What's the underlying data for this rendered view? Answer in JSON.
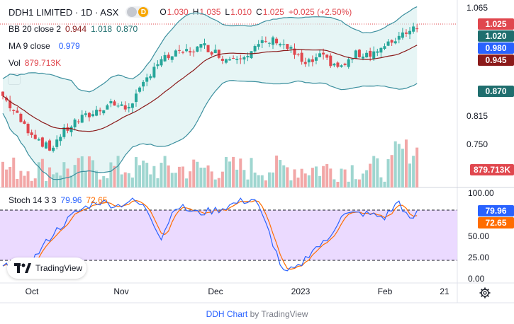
{
  "symbol": {
    "name": "DDH1 LIMITED · 1D · ASX",
    "badge": "D"
  },
  "ohlc": {
    "o_label": "O",
    "o": "1.030",
    "h_label": "H",
    "h": "1.035",
    "l_label": "L",
    "l": "1.010",
    "c_label": "C",
    "c": "1.025",
    "change": "+0.025 (+2.50%)"
  },
  "bb": {
    "label": "BB 20 close 2",
    "basis": "0.944",
    "upper": "1.018",
    "lower": "0.870"
  },
  "ma": {
    "label": "MA 9 close",
    "value": "0.979"
  },
  "vol": {
    "label": "Vol",
    "value": "879.713K"
  },
  "stoch": {
    "label": "Stoch 14 3 3",
    "k": "79.96",
    "d": "72.65"
  },
  "price_axis": [
    "1.065",
    "0.815",
    "0.750"
  ],
  "stoch_axis": [
    "100.00",
    "50.00",
    "25.00",
    "0.00"
  ],
  "price_tags": [
    {
      "text": "1.025",
      "color": "#e0474e"
    },
    {
      "text": "1.020",
      "color": "#1f6e6e"
    },
    {
      "text": "0.980",
      "color": "#2962ff"
    },
    {
      "text": "0.945",
      "color": "#8b1a1a"
    },
    {
      "text": "0.870",
      "color": "#1f6e6e"
    }
  ],
  "vol_tag": "879.713K",
  "stoch_tags": {
    "k": "79.96",
    "d": "72.65"
  },
  "x_axis": [
    "Oct",
    "Nov",
    "Dec",
    "2023",
    "Feb",
    "21"
  ],
  "logo_text": "TradingView",
  "footer": {
    "link": "DDH Chart",
    "by": "by TradingView"
  },
  "colors": {
    "up": "#26a69a",
    "down": "#e0474e",
    "band": "#3b8f9e",
    "basis": "#8b1a1a",
    "stoch_k": "#2962ff",
    "stoch_d": "#ff6d00",
    "stoch_bg": "#e8d4ff"
  }
}
